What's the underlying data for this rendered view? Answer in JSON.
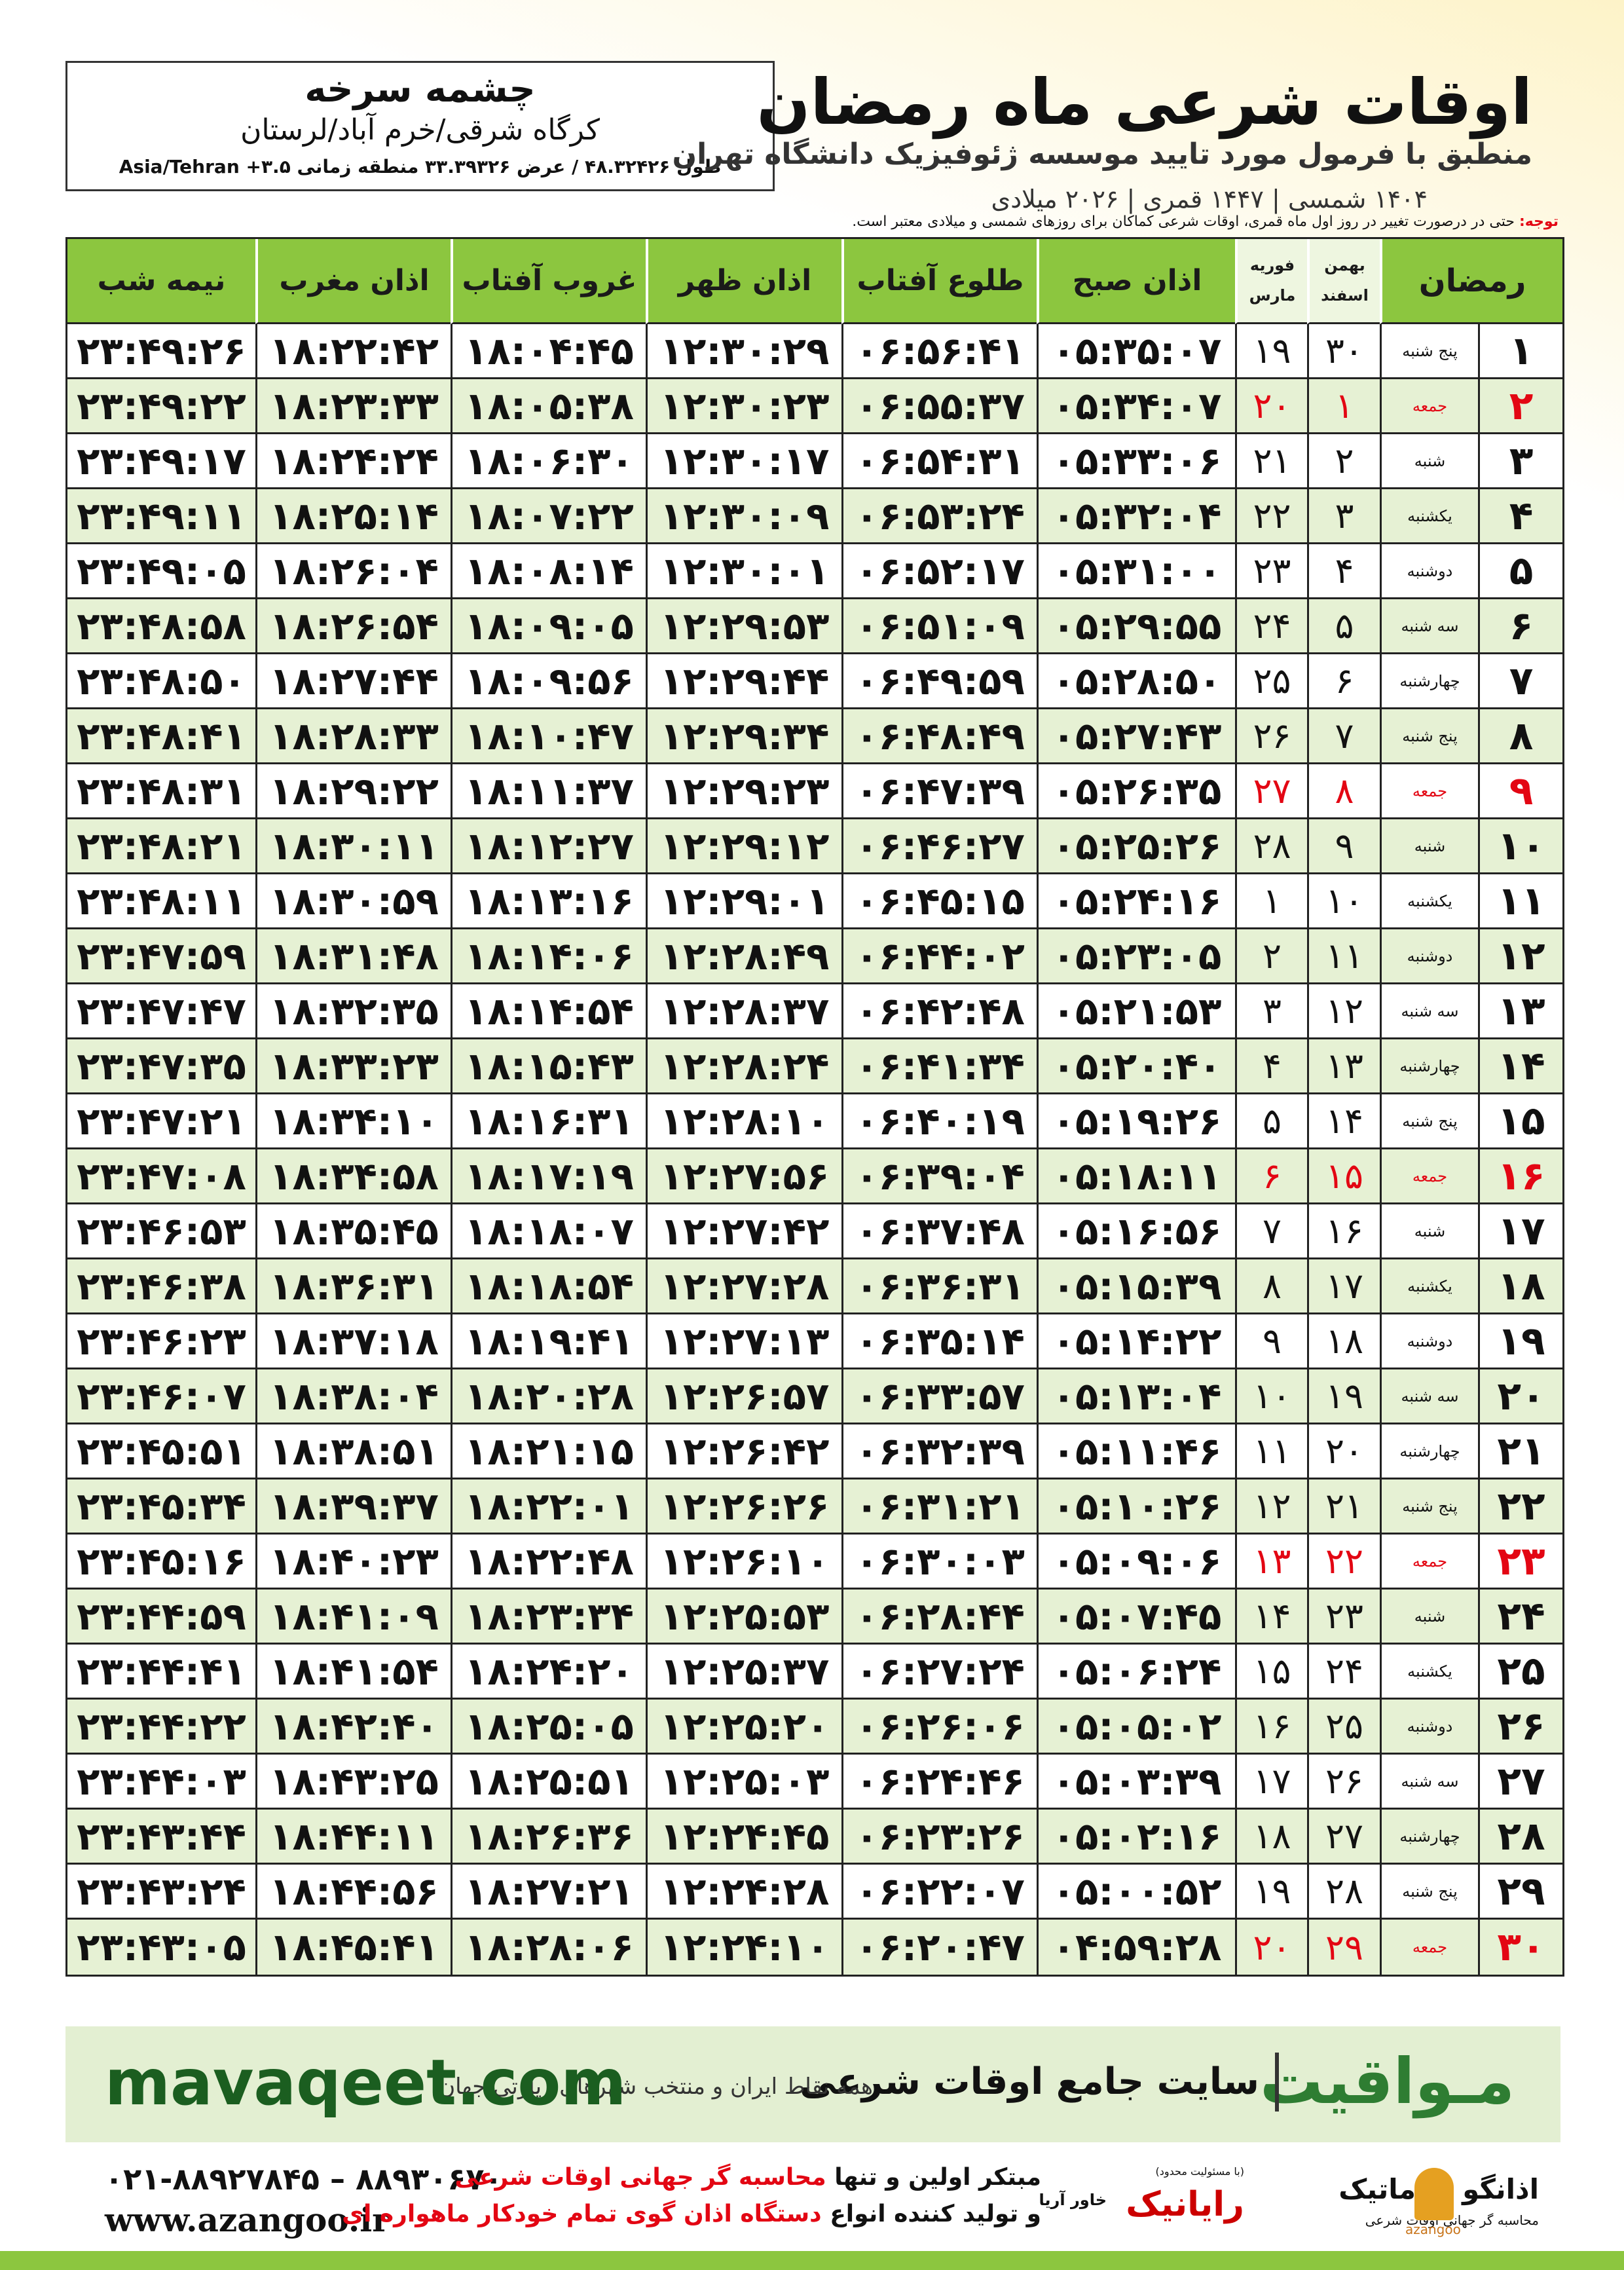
{
  "header": {
    "location": "چشمه سرخه",
    "region": "کرگاه شرقی/خرم آباد/لرستان",
    "coords": "طول ۴۸.۳۲۴۲۶ / عرض ۳۳.۳۹۳۲۶ منطقه زمانی ۳.۵+ Asia/Tehran",
    "title": "اوقات شرعی ماه رمضان",
    "subtitle": "منطبق با فرمول مورد تایید موسسه ژئوفیزیک دانشگاه تهران",
    "years": "۱۴۰۴ شمسی | ۱۴۴۷ قمری | ۲۰۲۶ میلادی",
    "note_label": "توجه:",
    "note": "حتی در درصورت تغییر در روز اول ماه قمری، اوقات شرعی کماکان برای روزهای شمسی و میلادی معتبر است."
  },
  "table": {
    "holiday_color": "#e30613",
    "columns": {
      "ramadan": "رمضان",
      "shamsi": [
        "بهمن",
        "اسفند"
      ],
      "miladi": [
        "فوریه",
        "مارس"
      ],
      "times": [
        "اذان صبح",
        "طلوع آفتاب",
        "اذان ظهر",
        "غروب آفتاب",
        "اذان مغرب",
        "نیمه شب"
      ]
    },
    "rows": [
      {
        "cells": [
          "۱",
          "پنج شنبه",
          "۳۰",
          "۱۹",
          "۰۵:۳۵:۰۷",
          "۰۶:۵۶:۴۱",
          "۱۲:۳۰:۲۹",
          "۱۸:۰۴:۴۵",
          "۱۸:۲۲:۴۲",
          "۲۳:۴۹:۲۶"
        ]
      },
      {
        "cells": [
          "۲",
          "جمعه",
          "۱",
          "۲۰",
          "۰۵:۳۴:۰۷",
          "۰۶:۵۵:۳۷",
          "۱۲:۳۰:۲۳",
          "۱۸:۰۵:۳۸",
          "۱۸:۲۳:۳۳",
          "۲۳:۴۹:۲۲"
        ],
        "holiday": true
      },
      {
        "cells": [
          "۳",
          "شنبه",
          "۲",
          "۲۱",
          "۰۵:۳۳:۰۶",
          "۰۶:۵۴:۳۱",
          "۱۲:۳۰:۱۷",
          "۱۸:۰۶:۳۰",
          "۱۸:۲۴:۲۴",
          "۲۳:۴۹:۱۷"
        ]
      },
      {
        "cells": [
          "۴",
          "یکشنبه",
          "۳",
          "۲۲",
          "۰۵:۳۲:۰۴",
          "۰۶:۵۳:۲۴",
          "۱۲:۳۰:۰۹",
          "۱۸:۰۷:۲۲",
          "۱۸:۲۵:۱۴",
          "۲۳:۴۹:۱۱"
        ]
      },
      {
        "cells": [
          "۵",
          "دوشنبه",
          "۴",
          "۲۳",
          "۰۵:۳۱:۰۰",
          "۰۶:۵۲:۱۷",
          "۱۲:۳۰:۰۱",
          "۱۸:۰۸:۱۴",
          "۱۸:۲۶:۰۴",
          "۲۳:۴۹:۰۵"
        ]
      },
      {
        "cells": [
          "۶",
          "سه شنبه",
          "۵",
          "۲۴",
          "۰۵:۲۹:۵۵",
          "۰۶:۵۱:۰۹",
          "۱۲:۲۹:۵۳",
          "۱۸:۰۹:۰۵",
          "۱۸:۲۶:۵۴",
          "۲۳:۴۸:۵۸"
        ]
      },
      {
        "cells": [
          "۷",
          "چهارشنبه",
          "۶",
          "۲۵",
          "۰۵:۲۸:۵۰",
          "۰۶:۴۹:۵۹",
          "۱۲:۲۹:۴۴",
          "۱۸:۰۹:۵۶",
          "۱۸:۲۷:۴۴",
          "۲۳:۴۸:۵۰"
        ]
      },
      {
        "cells": [
          "۸",
          "پنج شنبه",
          "۷",
          "۲۶",
          "۰۵:۲۷:۴۳",
          "۰۶:۴۸:۴۹",
          "۱۲:۲۹:۳۴",
          "۱۸:۱۰:۴۷",
          "۱۸:۲۸:۳۳",
          "۲۳:۴۸:۴۱"
        ]
      },
      {
        "cells": [
          "۹",
          "جمعه",
          "۸",
          "۲۷",
          "۰۵:۲۶:۳۵",
          "۰۶:۴۷:۳۹",
          "۱۲:۲۹:۲۳",
          "۱۸:۱۱:۳۷",
          "۱۸:۲۹:۲۲",
          "۲۳:۴۸:۳۱"
        ],
        "holiday": true
      },
      {
        "cells": [
          "۱۰",
          "شنبه",
          "۹",
          "۲۸",
          "۰۵:۲۵:۲۶",
          "۰۶:۴۶:۲۷",
          "۱۲:۲۹:۱۲",
          "۱۸:۱۲:۲۷",
          "۱۸:۳۰:۱۱",
          "۲۳:۴۸:۲۱"
        ]
      },
      {
        "cells": [
          "۱۱",
          "یکشنبه",
          "۱۰",
          "۱",
          "۰۵:۲۴:۱۶",
          "۰۶:۴۵:۱۵",
          "۱۲:۲۹:۰۱",
          "۱۸:۱۳:۱۶",
          "۱۸:۳۰:۵۹",
          "۲۳:۴۸:۱۱"
        ]
      },
      {
        "cells": [
          "۱۲",
          "دوشنبه",
          "۱۱",
          "۲",
          "۰۵:۲۳:۰۵",
          "۰۶:۴۴:۰۲",
          "۱۲:۲۸:۴۹",
          "۱۸:۱۴:۰۶",
          "۱۸:۳۱:۴۸",
          "۲۳:۴۷:۵۹"
        ]
      },
      {
        "cells": [
          "۱۳",
          "سه شنبه",
          "۱۲",
          "۳",
          "۰۵:۲۱:۵۳",
          "۰۶:۴۲:۴۸",
          "۱۲:۲۸:۳۷",
          "۱۸:۱۴:۵۴",
          "۱۸:۳۲:۳۵",
          "۲۳:۴۷:۴۷"
        ]
      },
      {
        "cells": [
          "۱۴",
          "چهارشنبه",
          "۱۳",
          "۴",
          "۰۵:۲۰:۴۰",
          "۰۶:۴۱:۳۴",
          "۱۲:۲۸:۲۴",
          "۱۸:۱۵:۴۳",
          "۱۸:۳۳:۲۳",
          "۲۳:۴۷:۳۵"
        ]
      },
      {
        "cells": [
          "۱۵",
          "پنج شنبه",
          "۱۴",
          "۵",
          "۰۵:۱۹:۲۶",
          "۰۶:۴۰:۱۹",
          "۱۲:۲۸:۱۰",
          "۱۸:۱۶:۳۱",
          "۱۸:۳۴:۱۰",
          "۲۳:۴۷:۲۱"
        ]
      },
      {
        "cells": [
          "۱۶",
          "جمعه",
          "۱۵",
          "۶",
          "۰۵:۱۸:۱۱",
          "۰۶:۳۹:۰۴",
          "۱۲:۲۷:۵۶",
          "۱۸:۱۷:۱۹",
          "۱۸:۳۴:۵۸",
          "۲۳:۴۷:۰۸"
        ],
        "holiday": true
      },
      {
        "cells": [
          "۱۷",
          "شنبه",
          "۱۶",
          "۷",
          "۰۵:۱۶:۵۶",
          "۰۶:۳۷:۴۸",
          "۱۲:۲۷:۴۲",
          "۱۸:۱۸:۰۷",
          "۱۸:۳۵:۴۵",
          "۲۳:۴۶:۵۳"
        ]
      },
      {
        "cells": [
          "۱۸",
          "یکشنبه",
          "۱۷",
          "۸",
          "۰۵:۱۵:۳۹",
          "۰۶:۳۶:۳۱",
          "۱۲:۲۷:۲۸",
          "۱۸:۱۸:۵۴",
          "۱۸:۳۶:۳۱",
          "۲۳:۴۶:۳۸"
        ]
      },
      {
        "cells": [
          "۱۹",
          "دوشنبه",
          "۱۸",
          "۹",
          "۰۵:۱۴:۲۲",
          "۰۶:۳۵:۱۴",
          "۱۲:۲۷:۱۳",
          "۱۸:۱۹:۴۱",
          "۱۸:۳۷:۱۸",
          "۲۳:۴۶:۲۳"
        ]
      },
      {
        "cells": [
          "۲۰",
          "سه شنبه",
          "۱۹",
          "۱۰",
          "۰۵:۱۳:۰۴",
          "۰۶:۳۳:۵۷",
          "۱۲:۲۶:۵۷",
          "۱۸:۲۰:۲۸",
          "۱۸:۳۸:۰۴",
          "۲۳:۴۶:۰۷"
        ]
      },
      {
        "cells": [
          "۲۱",
          "چهارشنبه",
          "۲۰",
          "۱۱",
          "۰۵:۱۱:۴۶",
          "۰۶:۳۲:۳۹",
          "۱۲:۲۶:۴۲",
          "۱۸:۲۱:۱۵",
          "۱۸:۳۸:۵۱",
          "۲۳:۴۵:۵۱"
        ]
      },
      {
        "cells": [
          "۲۲",
          "پنج شنبه",
          "۲۱",
          "۱۲",
          "۰۵:۱۰:۲۶",
          "۰۶:۳۱:۲۱",
          "۱۲:۲۶:۲۶",
          "۱۸:۲۲:۰۱",
          "۱۸:۳۹:۳۷",
          "۲۳:۴۵:۳۴"
        ]
      },
      {
        "cells": [
          "۲۳",
          "جمعه",
          "۲۲",
          "۱۳",
          "۰۵:۰۹:۰۶",
          "۰۶:۳۰:۰۳",
          "۱۲:۲۶:۱۰",
          "۱۸:۲۲:۴۸",
          "۱۸:۴۰:۲۳",
          "۲۳:۴۵:۱۶"
        ],
        "holiday": true
      },
      {
        "cells": [
          "۲۴",
          "شنبه",
          "۲۳",
          "۱۴",
          "۰۵:۰۷:۴۵",
          "۰۶:۲۸:۴۴",
          "۱۲:۲۵:۵۳",
          "۱۸:۲۳:۳۴",
          "۱۸:۴۱:۰۹",
          "۲۳:۴۴:۵۹"
        ]
      },
      {
        "cells": [
          "۲۵",
          "یکشنبه",
          "۲۴",
          "۱۵",
          "۰۵:۰۶:۲۴",
          "۰۶:۲۷:۲۴",
          "۱۲:۲۵:۳۷",
          "۱۸:۲۴:۲۰",
          "۱۸:۴۱:۵۴",
          "۲۳:۴۴:۴۱"
        ]
      },
      {
        "cells": [
          "۲۶",
          "دوشنبه",
          "۲۵",
          "۱۶",
          "۰۵:۰۵:۰۲",
          "۰۶:۲۶:۰۶",
          "۱۲:۲۵:۲۰",
          "۱۸:۲۵:۰۵",
          "۱۸:۴۲:۴۰",
          "۲۳:۴۴:۲۲"
        ]
      },
      {
        "cells": [
          "۲۷",
          "سه شنبه",
          "۲۶",
          "۱۷",
          "۰۵:۰۳:۳۹",
          "۰۶:۲۴:۴۶",
          "۱۲:۲۵:۰۳",
          "۱۸:۲۵:۵۱",
          "۱۸:۴۳:۲۵",
          "۲۳:۴۴:۰۳"
        ]
      },
      {
        "cells": [
          "۲۸",
          "چهارشنبه",
          "۲۷",
          "۱۸",
          "۰۵:۰۲:۱۶",
          "۰۶:۲۳:۲۶",
          "۱۲:۲۴:۴۵",
          "۱۸:۲۶:۳۶",
          "۱۸:۴۴:۱۱",
          "۲۳:۴۳:۴۴"
        ]
      },
      {
        "cells": [
          "۲۹",
          "پنج شنبه",
          "۲۸",
          "۱۹",
          "۰۵:۰۰:۵۲",
          "۰۶:۲۲:۰۷",
          "۱۲:۲۴:۲۸",
          "۱۸:۲۷:۲۱",
          "۱۸:۴۴:۵۶",
          "۲۳:۴۳:۲۴"
        ]
      },
      {
        "cells": [
          "۳۰",
          "جمعه",
          "۲۹",
          "۲۰",
          "۰۴:۵۹:۲۸",
          "۰۶:۲۰:۴۷",
          "۱۲:۲۴:۱۰",
          "۱۸:۲۸:۰۶",
          "۱۸:۴۵:۴۱",
          "۲۳:۴۳:۰۵"
        ],
        "holiday": true
      }
    ]
  },
  "banner": {
    "site": "mavaqeet.com",
    "brand": "مـواقیت",
    "slogan": "سایت جامع اوقات شرعی",
    "tagline": "همه نقاط ایران و منتخب شهرهای زیارتی جهان"
  },
  "footer": {
    "phones": "۰۲۱-۸۸۹۲۷۸۴۵ – ۸۸۹۳۰۶۷۰",
    "web": "www.azangoo.ir",
    "line1_a": "مبتکر اولین و تنها",
    "line1_b": "محاسبه گر جهانی اوقات شرعی",
    "line2_a": "و تولید کننده انواع",
    "line2_b": "دستگاه اذان گوی تمام خودکار ماهواره ای",
    "logo1": "رایانیک",
    "logo1_sub": "خاور آریا",
    "logo1_note": "(با مسئولیت محدود)",
    "logo2": "اذانگو اتوماتیک",
    "logo2_sub": "محاسبه گر جهانی اوقات شرعی",
    "logo2_en": "azangoo"
  }
}
